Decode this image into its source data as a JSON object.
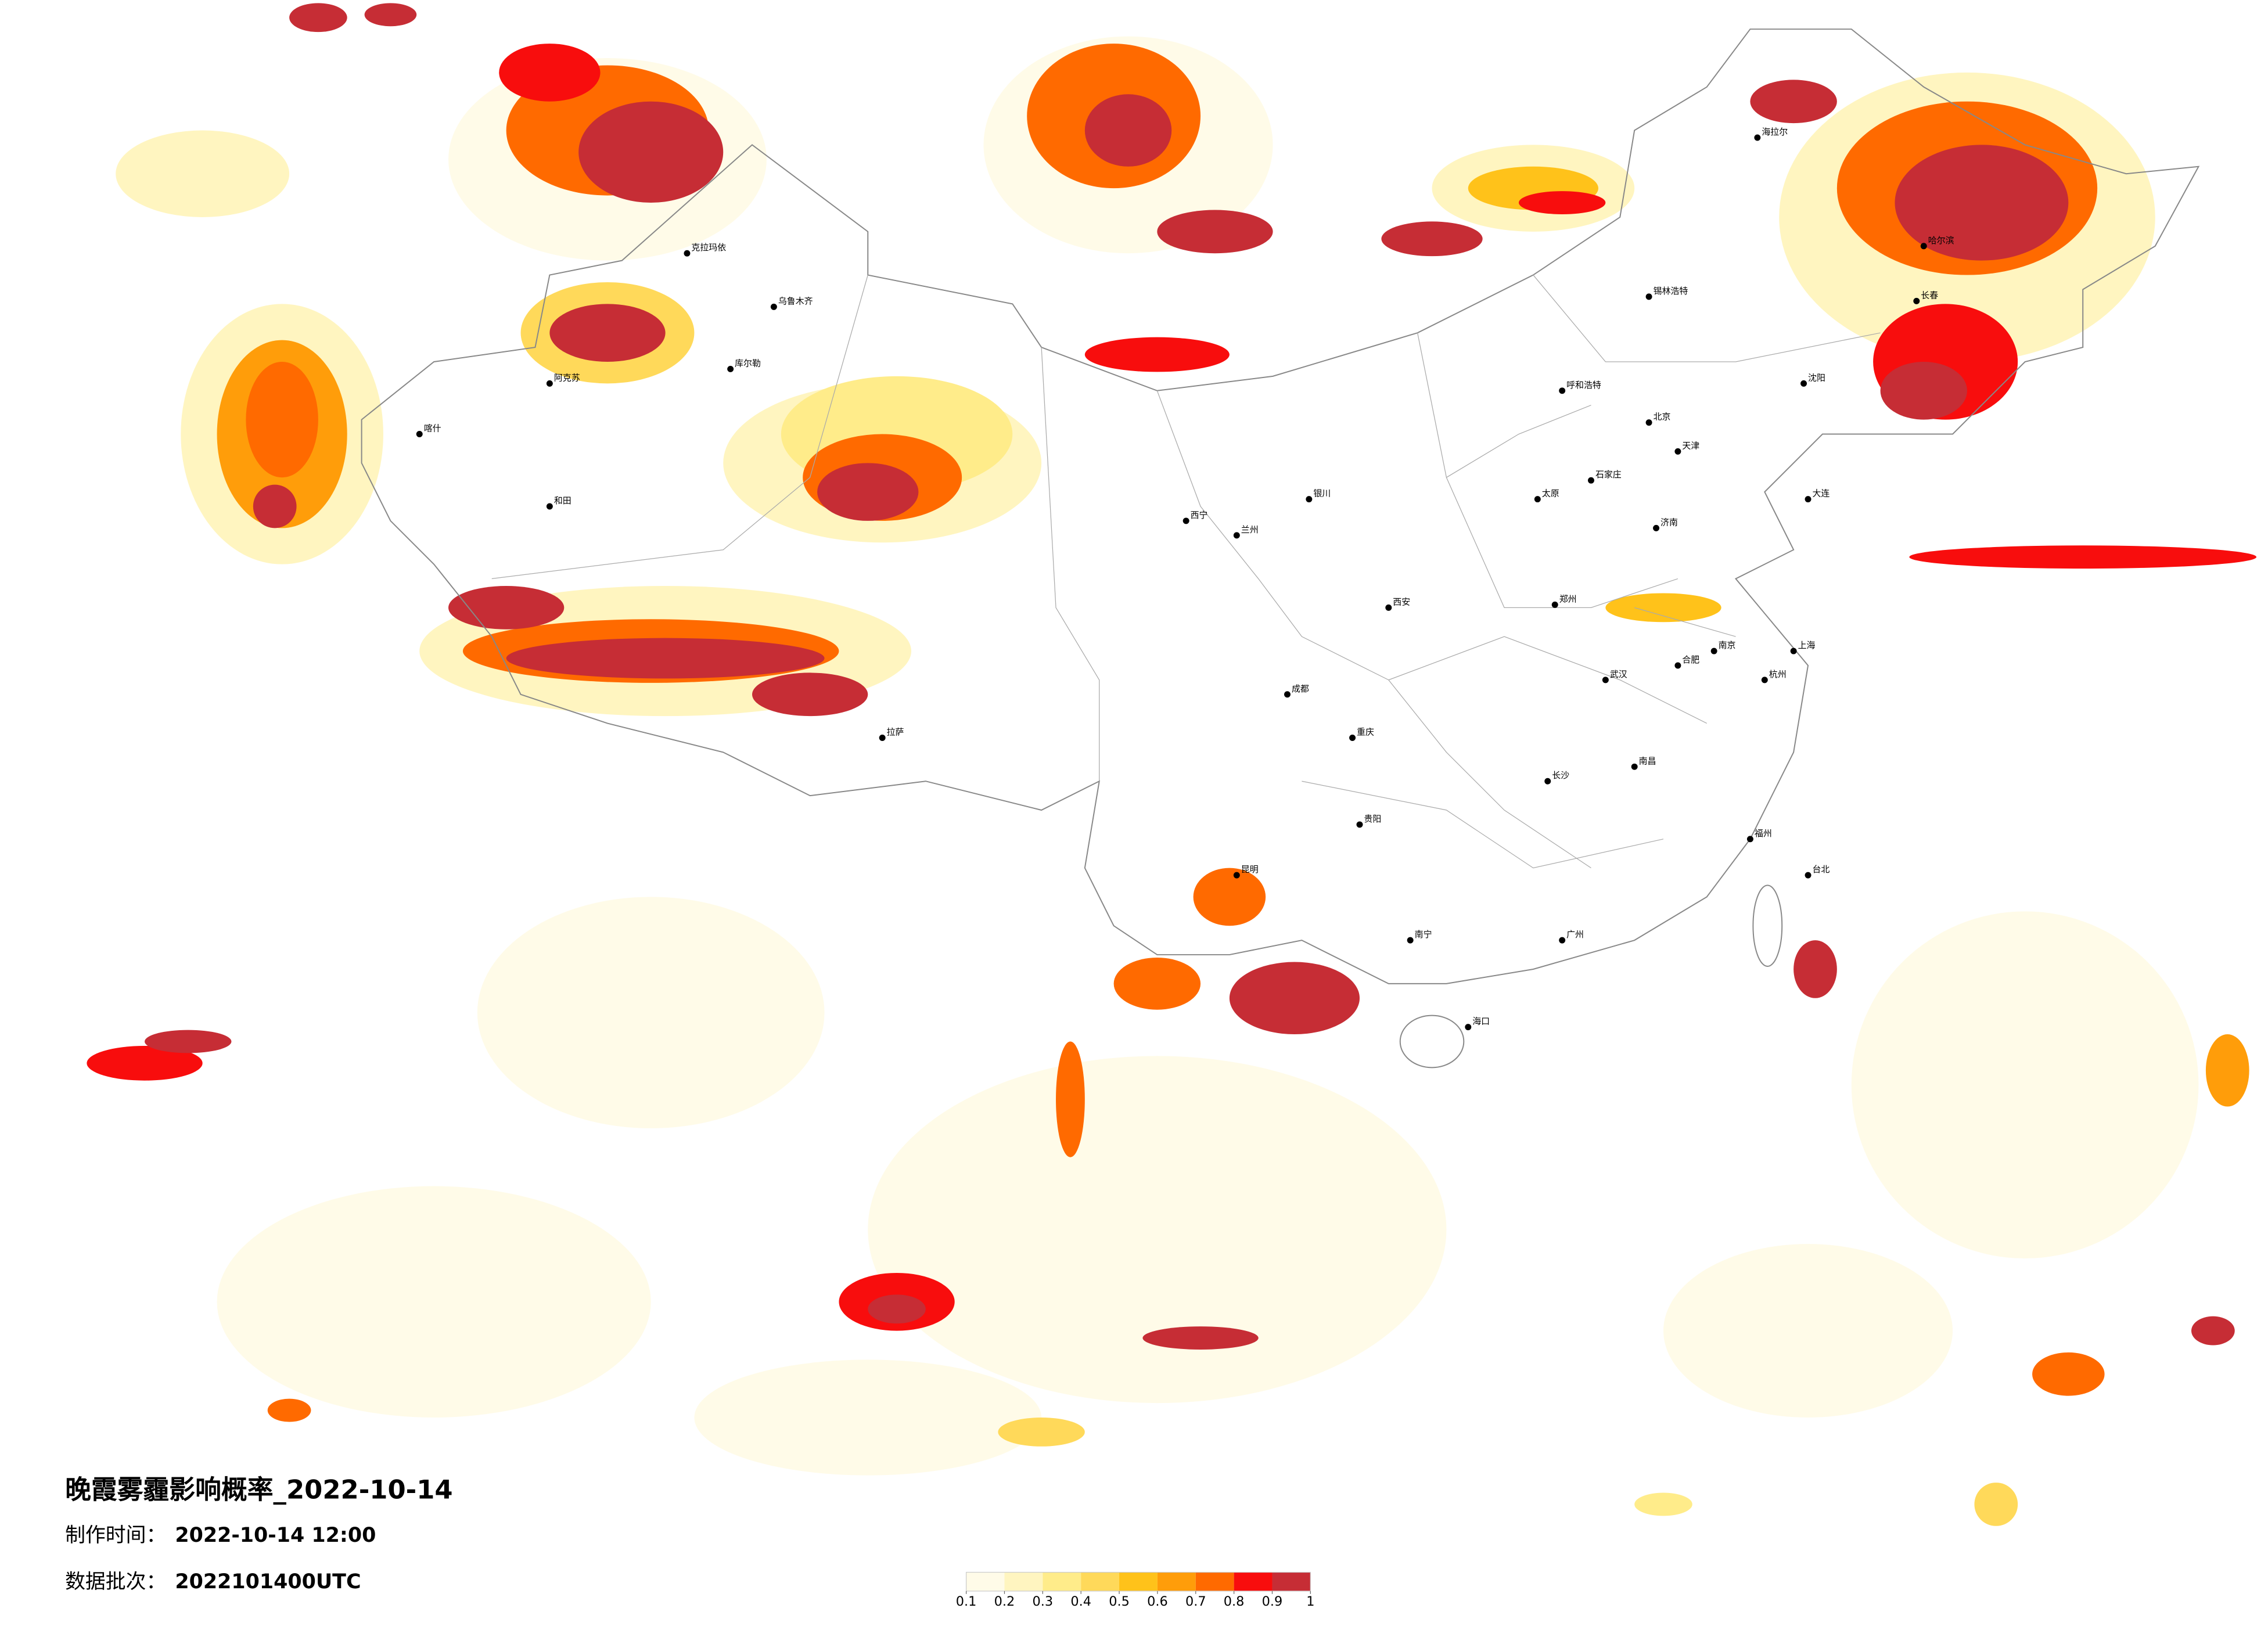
{
  "title": "晚霞雾霾影响概率_2022-10-14",
  "made_time": {
    "label": "制作时间：",
    "value": "2022-10-14 12:00"
  },
  "batch": {
    "label": "数据批次：",
    "value": "2022101400UTC"
  },
  "legend": {
    "ticks": [
      0.1,
      0.2,
      0.3,
      0.4,
      0.5,
      0.6,
      0.7,
      0.8,
      0.9,
      1
    ],
    "colors": [
      "#fffbe8",
      "#fff5c0",
      "#ffec8a",
      "#ffd95a",
      "#ffc21a",
      "#ff9d0a",
      "#ff6a00",
      "#f80d0d",
      "#c62d35"
    ]
  },
  "cities": [
    "北京",
    "天津",
    "石家庄",
    "太原",
    "呼和浩特",
    "沈阳",
    "长春",
    "哈尔滨",
    "济南",
    "郑州",
    "西安",
    "兰州",
    "西宁",
    "银川",
    "乌鲁木齐",
    "拉萨",
    "成都",
    "重庆",
    "贵阳",
    "昆明",
    "南宁",
    "广州",
    "海口",
    "长沙",
    "武汉",
    "南昌",
    "福州",
    "杭州",
    "上海",
    "南京",
    "合肥",
    "台北",
    "海拉尔",
    "喀什",
    "和田",
    "锡林浩特",
    "大连",
    "克拉玛依",
    "阿克苏",
    "库尔勒"
  ]
}
